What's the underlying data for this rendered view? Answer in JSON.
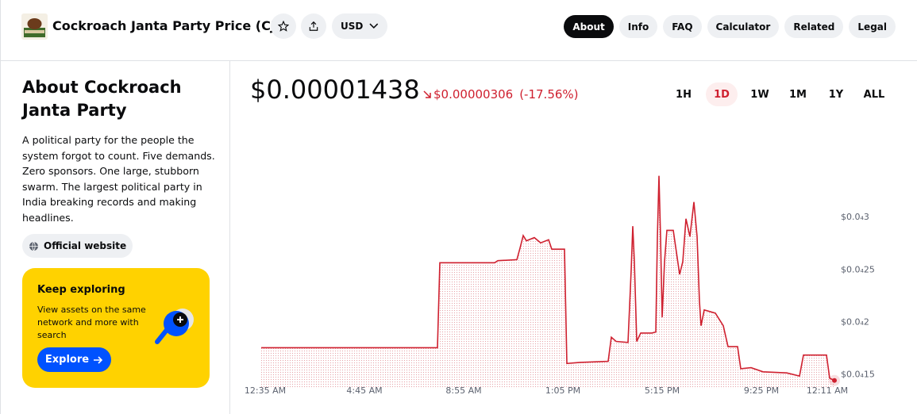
{
  "header": {
    "title": "Cockroach Janta Party Price (CJP)",
    "currency": "USD",
    "tabs": [
      "About",
      "Info",
      "FAQ",
      "Calculator",
      "Related",
      "Legal"
    ],
    "active_tab": 0
  },
  "about": {
    "heading": "About Cockroach Janta Party",
    "description": "A political party for the people the system forgot to count. Five demands. Zero sponsors. One large, stubborn swarm. The largest political party in India breaking records and making headlines.",
    "website_button": "Official website"
  },
  "explore": {
    "title": "Keep exploring",
    "text": "View assets on the same network and more with search",
    "button": "Explore"
  },
  "price": {
    "current": "$0.00001438",
    "change": "$0.00000306",
    "change_percent": "(-17.56%)"
  },
  "ranges": {
    "buttons": [
      "1H",
      "1D",
      "1W",
      "1M",
      "1Y",
      "ALL"
    ],
    "active": 1
  },
  "chart_data": {
    "type": "line",
    "color": "#cf202f",
    "x": [
      -10,
      434,
      440,
      578,
      586,
      634,
      642,
      650,
      658,
      678,
      694,
      714,
      722,
      754,
      760,
      794,
      864,
      872,
      884,
      914,
      922,
      926,
      930,
      936,
      946,
      974,
      984,
      988,
      992,
      996,
      1000,
      1006,
      1012,
      1028,
      1036,
      1044,
      1052,
      1060,
      1070,
      1080,
      1088,
      1094,
      1098,
      1106,
      1134,
      1154,
      1166,
      1190,
      1198,
      1224,
      1254,
      1314,
      1346,
      1356,
      1414,
      1422,
      1434
    ],
    "values": [
      1.75e-05,
      1.75e-05,
      2.56e-05,
      2.56e-05,
      2.58e-05,
      2.59e-05,
      2.7e-05,
      2.82e-05,
      2.77e-05,
      2.8e-05,
      2.75e-05,
      2.78e-05,
      2.69e-05,
      2.69e-05,
      1.6e-05,
      1.61e-05,
      1.62e-05,
      1.85e-05,
      1.81e-05,
      1.8e-05,
      2.49e-05,
      2.91e-05,
      2.57e-05,
      1.81e-05,
      1.89e-05,
      1.89e-05,
      1.9e-05,
      2.8e-05,
      3.39e-05,
      2.8e-05,
      2.04e-05,
      2.57e-05,
      2.87e-05,
      2.87e-05,
      2.66e-05,
      2.45e-05,
      2.57e-05,
      2.98e-05,
      2.81e-05,
      3.14e-05,
      2.81e-05,
      2.19e-05,
      1.96e-05,
      2.11e-05,
      2.08e-05,
      1.96e-05,
      1.76e-05,
      1.76e-05,
      1.55e-05,
      1.56e-05,
      1.52e-05,
      1.51e-05,
      1.48e-05,
      1.68e-05,
      1.68e-05,
      1.46e-05,
      1.438e-05
    ],
    "xlim": [
      -10,
      1440
    ],
    "ylim": [
      1.36e-05,
      3.44e-05
    ],
    "xticks": [
      {
        "value": 0,
        "label": "12:35 AM"
      },
      {
        "value": 250,
        "label": "4:45 AM"
      },
      {
        "value": 500,
        "label": "8:55 AM"
      },
      {
        "value": 750,
        "label": "1:05 PM"
      },
      {
        "value": 1000,
        "label": "5:15 PM"
      },
      {
        "value": 1250,
        "label": "9:25 PM"
      },
      {
        "value": 1416,
        "label": "12:11 AM"
      }
    ],
    "yticks": [
      {
        "value": 3e-05,
        "label": "$0.0₄3"
      },
      {
        "value": 2.5e-05,
        "label": "$0.0₄25"
      },
      {
        "value": 2e-05,
        "label": "$0.0₄2"
      },
      {
        "value": 1.5e-05,
        "label": "$0.0₄15"
      }
    ]
  }
}
